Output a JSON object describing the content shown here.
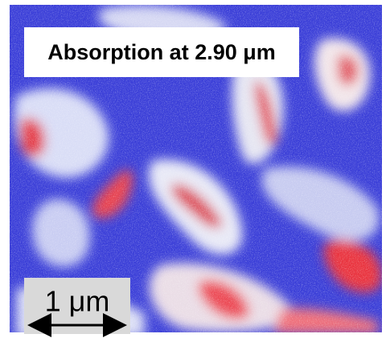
{
  "title": "Absorption at 2.90 μm",
  "scale_bar": {
    "label": "1 μm"
  }
}
